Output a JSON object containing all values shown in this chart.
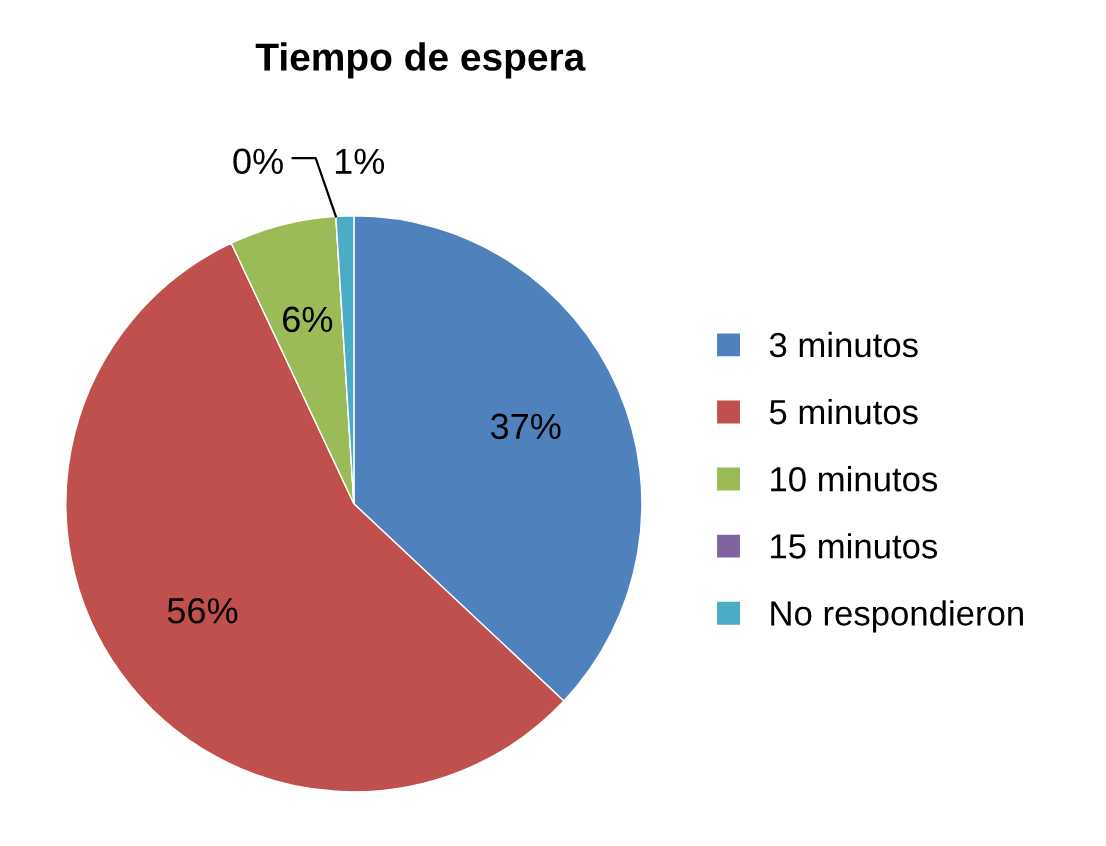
{
  "chart_data": {
    "type": "pie",
    "title": "Tiempo de espera",
    "categories": [
      "3 minutos",
      "5 minutos",
      "10 minutos",
      "15 minutos",
      "No respondieron"
    ],
    "values": [
      37,
      56,
      6,
      0,
      1
    ],
    "value_labels": [
      "37%",
      "56%",
      "6%",
      "0%",
      "1%"
    ],
    "colors": [
      "#4f81bd",
      "#c0504d",
      "#9bbb59",
      "#8064a2",
      "#4bacc6"
    ],
    "legend": "right"
  }
}
